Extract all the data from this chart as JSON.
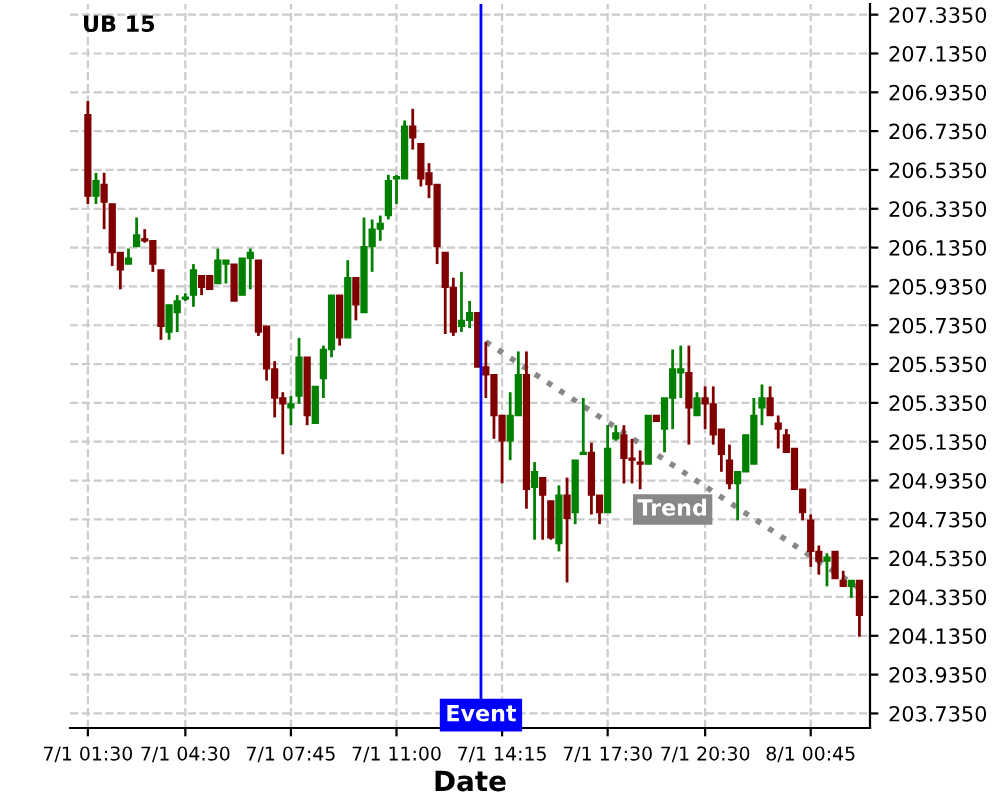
{
  "chart_data": {
    "type": "candlestick",
    "title": "UB 15",
    "xlabel": "Date",
    "categories": [
      "7/1 01:30",
      null,
      null,
      null,
      null,
      null,
      null,
      null,
      null,
      null,
      null,
      null,
      "7/1 04:30",
      null,
      null,
      null,
      null,
      null,
      null,
      null,
      null,
      null,
      null,
      null,
      null,
      "7/1 07:45",
      null,
      null,
      null,
      null,
      null,
      null,
      null,
      null,
      null,
      null,
      null,
      null,
      "7/1 11:00",
      null,
      null,
      null,
      null,
      null,
      null,
      null,
      null,
      null,
      null,
      null,
      null,
      "7/1 14:15",
      null,
      null,
      null,
      null,
      null,
      null,
      null,
      null,
      null,
      null,
      null,
      null,
      "7/1 17:30",
      null,
      null,
      null,
      null,
      null,
      null,
      null,
      null,
      null,
      null,
      null,
      "7/1 20:30",
      null,
      null,
      null,
      null,
      null,
      null,
      null,
      null,
      null,
      null,
      null,
      null,
      "8/1 00:45",
      null,
      null,
      null,
      null,
      null,
      null
    ],
    "ohlc": [
      [
        206.82,
        206.89,
        206.36,
        206.4
      ],
      [
        206.4,
        206.52,
        206.36,
        206.48
      ],
      [
        206.46,
        206.52,
        206.23,
        206.37
      ],
      [
        206.36,
        206.36,
        206.04,
        206.11
      ],
      [
        206.11,
        206.11,
        205.92,
        206.02
      ],
      [
        206.05,
        206.13,
        206.05,
        206.08
      ],
      [
        206.14,
        206.29,
        206.14,
        206.2
      ],
      [
        206.18,
        206.23,
        206.16,
        206.17
      ],
      [
        206.17,
        206.17,
        206.01,
        206.05
      ],
      [
        206.02,
        206.02,
        205.66,
        205.73
      ],
      [
        205.7,
        205.84,
        205.66,
        205.84
      ],
      [
        205.8,
        205.89,
        205.7,
        205.86
      ],
      [
        205.87,
        205.9,
        205.86,
        205.88
      ],
      [
        205.89,
        206.05,
        205.83,
        206.02
      ],
      [
        205.99,
        205.99,
        205.89,
        205.93
      ],
      [
        205.99,
        205.99,
        205.92,
        205.92
      ],
      [
        205.95,
        206.13,
        205.95,
        206.07
      ],
      [
        206.05,
        206.07,
        205.95,
        206.07
      ],
      [
        206.05,
        206.05,
        205.86,
        205.86
      ],
      [
        205.89,
        206.08,
        205.89,
        206.08
      ],
      [
        206.08,
        206.13,
        205.92,
        206.11
      ],
      [
        206.07,
        206.07,
        205.68,
        205.7
      ],
      [
        205.73,
        205.73,
        205.45,
        205.51
      ],
      [
        205.51,
        205.55,
        205.26,
        205.36
      ],
      [
        205.36,
        205.39,
        205.07,
        205.33
      ],
      [
        205.31,
        205.37,
        205.22,
        205.33
      ],
      [
        205.37,
        205.67,
        205.33,
        205.57
      ],
      [
        205.57,
        205.57,
        205.22,
        205.27
      ],
      [
        205.23,
        205.42,
        205.23,
        205.42
      ],
      [
        205.46,
        205.63,
        205.36,
        205.61
      ],
      [
        205.61,
        205.89,
        205.57,
        205.89
      ],
      [
        205.89,
        205.89,
        205.63,
        205.67
      ],
      [
        205.67,
        206.07,
        205.67,
        205.98
      ],
      [
        205.98,
        205.98,
        205.76,
        205.84
      ],
      [
        205.8,
        206.29,
        205.8,
        206.14
      ],
      [
        206.14,
        206.28,
        206.01,
        206.23
      ],
      [
        206.23,
        206.3,
        206.17,
        206.26
      ],
      [
        206.3,
        206.51,
        206.28,
        206.48
      ],
      [
        206.49,
        206.51,
        206.36,
        206.5
      ],
      [
        206.49,
        206.79,
        206.49,
        206.76
      ],
      [
        206.76,
        206.85,
        206.64,
        206.7
      ],
      [
        206.67,
        206.67,
        206.45,
        206.49
      ],
      [
        206.52,
        206.57,
        206.39,
        206.46
      ],
      [
        206.46,
        206.46,
        206.05,
        206.14
      ],
      [
        206.11,
        206.11,
        205.69,
        205.93
      ],
      [
        205.93,
        205.98,
        205.68,
        205.7
      ],
      [
        205.73,
        206.01,
        205.7,
        205.76
      ],
      [
        205.76,
        205.86,
        205.72,
        205.8
      ],
      [
        205.8,
        205.8,
        205.52,
        205.52
      ],
      [
        205.52,
        205.65,
        205.36,
        205.48
      ],
      [
        205.48,
        205.48,
        205.15,
        205.27
      ],
      [
        205.27,
        205.27,
        204.92,
        205.14
      ],
      [
        205.14,
        205.39,
        205.04,
        205.27
      ],
      [
        205.27,
        205.6,
        205.27,
        205.48
      ],
      [
        205.48,
        205.6,
        204.79,
        204.89
      ],
      [
        204.9,
        205.03,
        204.63,
        204.98
      ],
      [
        204.95,
        204.95,
        204.63,
        204.86
      ],
      [
        204.83,
        204.83,
        204.63,
        204.64
      ],
      [
        204.61,
        204.91,
        204.57,
        204.86
      ],
      [
        204.86,
        204.95,
        204.41,
        204.74
      ],
      [
        204.77,
        205.04,
        204.71,
        205.04
      ],
      [
        205.07,
        205.36,
        205.07,
        205.08
      ],
      [
        205.08,
        205.13,
        204.76,
        204.86
      ],
      [
        204.86,
        204.86,
        204.71,
        204.77
      ],
      [
        204.77,
        205.22,
        204.77,
        205.1
      ],
      [
        205.15,
        205.22,
        205.14,
        205.18
      ],
      [
        205.17,
        205.22,
        204.92,
        205.05
      ],
      [
        205.05,
        205.15,
        204.92,
        205.04
      ],
      [
        205.03,
        205.09,
        204.89,
        205.02
      ],
      [
        205.02,
        205.27,
        205.02,
        205.27
      ],
      [
        205.27,
        205.27,
        205.24,
        205.24
      ],
      [
        205.2,
        205.36,
        205.08,
        205.36
      ],
      [
        205.36,
        205.61,
        205.2,
        205.51
      ],
      [
        205.49,
        205.63,
        205.36,
        205.51
      ],
      [
        205.49,
        205.63,
        205.12,
        205.31
      ],
      [
        205.27,
        205.39,
        205.27,
        205.36
      ],
      [
        205.36,
        205.42,
        205.2,
        205.33
      ],
      [
        205.33,
        205.42,
        205.12,
        205.17
      ],
      [
        205.2,
        205.2,
        204.98,
        205.07
      ],
      [
        205.04,
        205.12,
        204.89,
        204.92
      ],
      [
        204.92,
        204.98,
        204.73,
        204.98
      ],
      [
        204.98,
        205.17,
        204.98,
        205.17
      ],
      [
        205.02,
        205.36,
        205.02,
        205.27
      ],
      [
        205.31,
        205.43,
        205.22,
        205.36
      ],
      [
        205.36,
        205.42,
        205.27,
        205.27
      ],
      [
        205.23,
        205.27,
        205.1,
        205.2
      ],
      [
        205.17,
        205.2,
        205.08,
        205.08
      ],
      [
        205.1,
        205.1,
        204.89,
        204.89
      ],
      [
        204.89,
        204.89,
        204.73,
        204.77
      ],
      [
        204.73,
        204.76,
        204.49,
        204.57
      ],
      [
        204.57,
        204.6,
        204.45,
        204.52
      ],
      [
        204.52,
        204.56,
        204.39,
        204.54
      ],
      [
        204.57,
        204.57,
        204.43,
        204.43
      ],
      [
        204.42,
        204.47,
        204.39,
        204.39
      ],
      [
        204.39,
        204.42,
        204.33,
        204.42
      ],
      [
        204.42,
        204.42,
        204.13,
        204.24
      ]
    ],
    "colors": [
      "#800000",
      "#008000",
      "#800000",
      "#800000",
      "#800000",
      "#008000",
      "#008000",
      "#800000",
      "#800000",
      "#800000",
      "#008000",
      "#008000",
      "#008000",
      "#008000",
      "#800000",
      "#800000",
      "#008000",
      "#008000",
      "#800000",
      "#008000",
      "#008000",
      "#800000",
      "#800000",
      "#800000",
      "#800000",
      "#008000",
      "#008000",
      "#800000",
      "#008000",
      "#008000",
      "#008000",
      "#800000",
      "#008000",
      "#800000",
      "#008000",
      "#008000",
      "#008000",
      "#008000",
      "#008000",
      "#008000",
      "#800000",
      "#800000",
      "#800000",
      "#800000",
      "#800000",
      "#800000",
      "#008000",
      "#008000",
      "#800000",
      "#800000",
      "#800000",
      "#800000",
      "#008000",
      "#008000",
      "#800000",
      "#008000",
      "#800000",
      "#800000",
      "#008000",
      "#800000",
      "#008000",
      "#008000",
      "#800000",
      "#800000",
      "#008000",
      "#008000",
      "#800000",
      "#800000",
      "#800000",
      "#008000",
      "#800000",
      "#008000",
      "#008000",
      "#008000",
      "#800000",
      "#008000",
      "#800000",
      "#800000",
      "#800000",
      "#800000",
      "#008000",
      "#008000",
      "#008000",
      "#008000",
      "#800000",
      "#800000",
      "#800000",
      "#800000",
      "#800000",
      "#800000",
      "#800000",
      "#008000",
      "#800000",
      "#800000",
      "#008000",
      "#800000"
    ],
    "series": [
      {
        "type": "line",
        "name": "Trend",
        "color": "#888888",
        "line_style": "dotted",
        "values": [
          null,
          null,
          null,
          null,
          null,
          null,
          null,
          null,
          null,
          null,
          null,
          null,
          null,
          null,
          null,
          null,
          null,
          null,
          null,
          null,
          null,
          null,
          null,
          null,
          null,
          null,
          null,
          null,
          null,
          null,
          null,
          null,
          null,
          null,
          null,
          null,
          null,
          null,
          null,
          null,
          null,
          null,
          null,
          null,
          null,
          null,
          null,
          null,
          null,
          205.65,
          null,
          null,
          null,
          null,
          null,
          null,
          null,
          null,
          null,
          null,
          null,
          null,
          null,
          null,
          null,
          null,
          null,
          null,
          null,
          null,
          null,
          null,
          null,
          null,
          null,
          null,
          null,
          null,
          null,
          null,
          null,
          null,
          null,
          null,
          null,
          null,
          null,
          null,
          null,
          null,
          null,
          null,
          null,
          null,
          null,
          204.38
        ]
      }
    ],
    "annotations": [
      "Event"
    ],
    "ylim": [
      203.66,
      207.39
    ],
    "yticks": [
      {
        "value": 207.335,
        "label": "207.3350"
      },
      {
        "value": 207.135,
        "label": "207.1350"
      },
      {
        "value": 206.935,
        "label": "206.9350"
      },
      {
        "value": 206.735,
        "label": "206.7350"
      },
      {
        "value": 206.535,
        "label": "206.5350"
      },
      {
        "value": 206.335,
        "label": "206.3350"
      },
      {
        "value": 206.135,
        "label": "206.1350"
      },
      {
        "value": 205.935,
        "label": "205.9350"
      },
      {
        "value": 205.735,
        "label": "205.7350"
      },
      {
        "value": 205.535,
        "label": "205.5350"
      },
      {
        "value": 205.335,
        "label": "205.3350"
      },
      {
        "value": 205.135,
        "label": "205.1350"
      },
      {
        "value": 204.935,
        "label": "204.9350"
      },
      {
        "value": 204.735,
        "label": "204.7350"
      },
      {
        "value": 204.535,
        "label": "204.5350"
      },
      {
        "value": 204.335,
        "label": "204.3350"
      },
      {
        "value": 204.135,
        "label": "204.1350"
      },
      {
        "value": 203.935,
        "label": "203.9350"
      },
      {
        "value": 203.735,
        "label": "203.7350"
      }
    ],
    "grid": true
  }
}
